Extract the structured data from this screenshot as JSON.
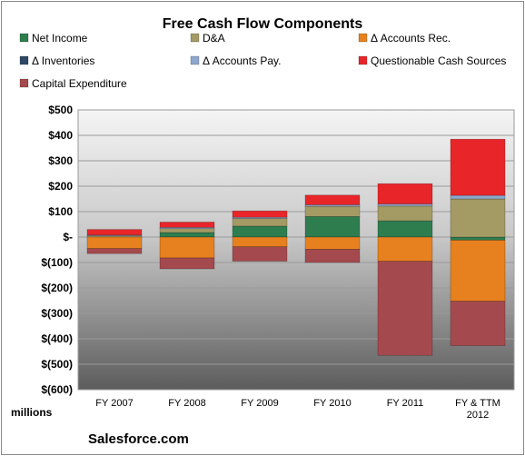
{
  "chart_data": {
    "type": "bar",
    "stacked": true,
    "title": "Free Cash Flow Components",
    "ylabel": "millions",
    "footer": "Salesforce.com",
    "categories": [
      "FY 2007",
      "FY 2008",
      "FY 2009",
      "FY 2010",
      "FY 2011",
      "FY & TTM 2012"
    ],
    "ylim": [
      -600,
      500
    ],
    "yticks": [
      500,
      400,
      300,
      200,
      100,
      0,
      -100,
      -200,
      -300,
      -400,
      -500,
      -600
    ],
    "ytick_labels": [
      "$500",
      "$400",
      "$300",
      "$200",
      "$100",
      "$-",
      "$(100)",
      "$(200)",
      "$(300)",
      "$(400)",
      "$(500)",
      "$(600)"
    ],
    "legend_position": "top",
    "series": [
      {
        "name": "Net Income",
        "color": "#2e7d4f",
        "values": [
          0,
          18,
          43,
          81,
          64,
          -12
        ]
      },
      {
        "name": "D&A",
        "color": "#a39a64",
        "values": [
          5,
          15,
          30,
          40,
          58,
          150
        ]
      },
      {
        "name": "Δ Accounts Rec.",
        "color": "#e7801e",
        "values": [
          -45,
          -82,
          -38,
          -48,
          -95,
          -240
        ]
      },
      {
        "name": "Δ Inventories",
        "color": "#2f4866",
        "values": [
          0,
          0,
          0,
          0,
          0,
          0
        ]
      },
      {
        "name": "Δ Accounts Pay.",
        "color": "#8ea7cc",
        "values": [
          3,
          5,
          5,
          6,
          8,
          14
        ]
      },
      {
        "name": "Questionable Cash Sources",
        "color": "#e8262a",
        "values": [
          22,
          21,
          25,
          38,
          80,
          221
        ]
      },
      {
        "name": "Capital Expenditure",
        "color": "#a44a4e",
        "values": [
          -20,
          -43,
          -57,
          -52,
          -370,
          -175
        ]
      }
    ]
  }
}
